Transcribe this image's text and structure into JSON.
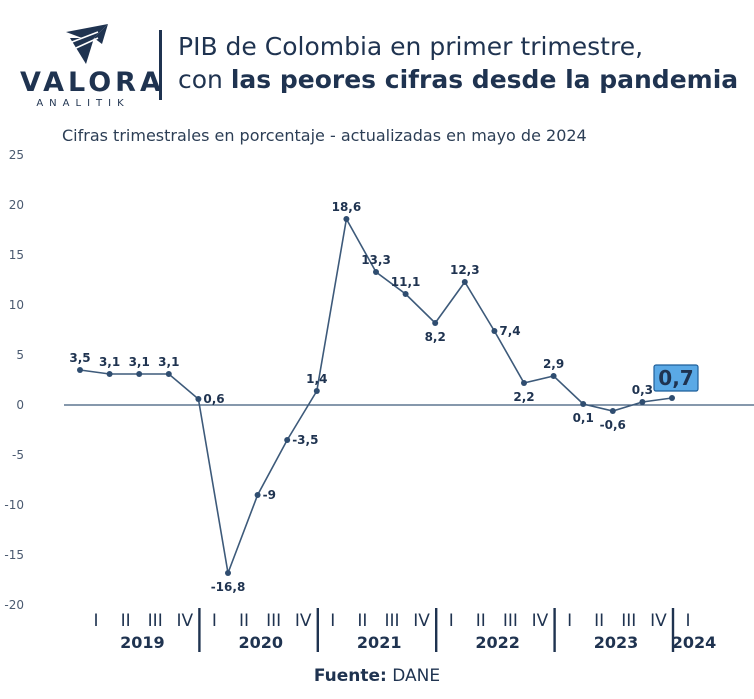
{
  "brand": {
    "name": "VALORA",
    "tagline": "ANALITIK",
    "color": "#1f3350",
    "icon": "valora-mark-icon"
  },
  "header": {
    "title_line1": "PIB de Colombia en primer trimestre,",
    "title_line2_prefix": "con ",
    "title_line2_bold": "las peores cifras desde la pandemia"
  },
  "source": {
    "label": "Fuente:",
    "value": "DANE"
  },
  "chart_data": {
    "type": "line",
    "title": "",
    "subtitle": "Cifras trimestrales en porcentaje - actualizadas en mayo de 2024",
    "xlabel": "",
    "ylabel": "",
    "ylim": [
      -20,
      25
    ],
    "yticks": [
      25,
      20,
      15,
      10,
      5,
      0,
      -5,
      -10,
      -15,
      -20
    ],
    "grid": false,
    "legend": "none",
    "colors": {
      "line": "#3d5a7a",
      "point": "#2f4d70",
      "axis": "#3d5a7a",
      "highlight_bg": "#5aa9e6",
      "highlight_border": "#1f5f9a"
    },
    "x": [
      "2019-I",
      "2019-II",
      "2019-III",
      "2019-IV",
      "2020-I",
      "2020-II",
      "2020-III",
      "2020-IV",
      "2021-I",
      "2021-II",
      "2021-III",
      "2021-IV",
      "2022-I",
      "2022-II",
      "2022-III",
      "2022-IV",
      "2023-I",
      "2023-II",
      "2023-III",
      "2023-IV",
      "2024-I"
    ],
    "values": [
      3.5,
      3.1,
      3.1,
      3.1,
      0.6,
      -16.8,
      -9,
      -3.5,
      1.4,
      18.6,
      13.3,
      11.1,
      8.2,
      12.3,
      7.4,
      2.2,
      2.9,
      0.1,
      -0.6,
      0.3,
      0.7
    ],
    "data_labels": [
      "3,5",
      "3,1",
      "3,1",
      "3,1",
      "0,6",
      "-16,8",
      "-9",
      "-3,5",
      "1,4",
      "18,6",
      "13,3",
      "11,1",
      "8,2",
      "12,3",
      "7,4",
      "2,2",
      "2,9",
      "0,1",
      "-0,6",
      "0,3",
      "0,7"
    ],
    "label_positions": [
      "above",
      "above",
      "above",
      "above",
      "right",
      "below",
      "right",
      "right",
      "above",
      "above",
      "above",
      "above",
      "below",
      "above",
      "right",
      "below",
      "above",
      "below",
      "below",
      "above",
      "highlight"
    ],
    "year_groups": [
      {
        "year": "2019",
        "quarters": [
          "I",
          "II",
          "III",
          "IV"
        ]
      },
      {
        "year": "2020",
        "quarters": [
          "I",
          "II",
          "III",
          "IV"
        ]
      },
      {
        "year": "2021",
        "quarters": [
          "I",
          "II",
          "III",
          "IV"
        ]
      },
      {
        "year": "2022",
        "quarters": [
          "I",
          "II",
          "III",
          "IV"
        ]
      },
      {
        "year": "2023",
        "quarters": [
          "I",
          "II",
          "III",
          "IV"
        ]
      },
      {
        "year": "2024",
        "quarters": [
          "I"
        ]
      }
    ]
  }
}
